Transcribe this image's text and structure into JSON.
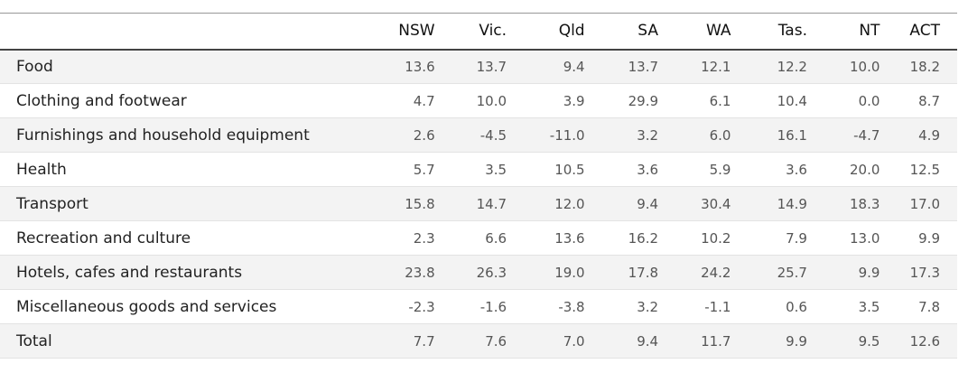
{
  "chart_data": {
    "type": "table",
    "columns": [
      "",
      "NSW",
      "Vic.",
      "Qld",
      "SA",
      "WA",
      "Tas.",
      "NT",
      "ACT"
    ],
    "rows": [
      {
        "label": "Food",
        "values": [
          "13.6",
          "13.7",
          "9.4",
          "13.7",
          "12.1",
          "12.2",
          "10.0",
          "18.2"
        ]
      },
      {
        "label": "Clothing and footwear",
        "values": [
          "4.7",
          "10.0",
          "3.9",
          "29.9",
          "6.1",
          "10.4",
          "0.0",
          "8.7"
        ]
      },
      {
        "label": "Furnishings and household equipment",
        "values": [
          "2.6",
          "-4.5",
          "-11.0",
          "3.2",
          "6.0",
          "16.1",
          "-4.7",
          "4.9"
        ]
      },
      {
        "label": "Health",
        "values": [
          "5.7",
          "3.5",
          "10.5",
          "3.6",
          "5.9",
          "3.6",
          "20.0",
          "12.5"
        ]
      },
      {
        "label": "Transport",
        "values": [
          "15.8",
          "14.7",
          "12.0",
          "9.4",
          "30.4",
          "14.9",
          "18.3",
          "17.0"
        ]
      },
      {
        "label": "Recreation and culture",
        "values": [
          "2.3",
          "6.6",
          "13.6",
          "16.2",
          "10.2",
          "7.9",
          "13.0",
          "9.9"
        ]
      },
      {
        "label": "Hotels, cafes and restaurants",
        "values": [
          "23.8",
          "26.3",
          "19.0",
          "17.8",
          "24.2",
          "25.7",
          "9.9",
          "17.3"
        ]
      },
      {
        "label": "Miscellaneous goods and services",
        "values": [
          "-2.3",
          "-1.6",
          "-3.8",
          "3.2",
          "-1.1",
          "0.6",
          "3.5",
          "7.8"
        ]
      },
      {
        "label": "Total",
        "values": [
          "7.7",
          "7.6",
          "7.0",
          "9.4",
          "11.7",
          "9.9",
          "9.5",
          "12.6"
        ]
      }
    ]
  },
  "colors": {
    "stripe": "#f3f3f3",
    "header_rule": "#444444",
    "row_rule": "#e3e3e3",
    "label_text": "#222222",
    "value_text": "#555555"
  }
}
